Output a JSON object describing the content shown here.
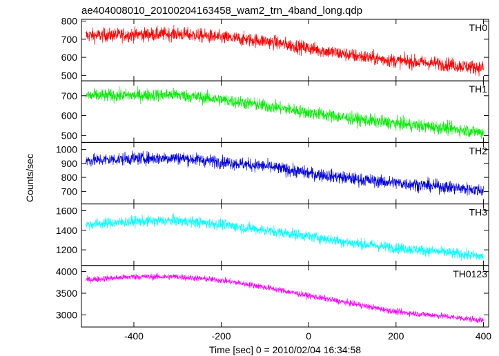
{
  "chart_data": {
    "type": "line",
    "title": "ae404008010_20100204163458_wam2_trn_4band_long.qdp",
    "xlabel": "Time [sec] 0 = 2010/02/04 16:34:58",
    "ylabel": "Counts/sec",
    "xlim": [
      -520,
      412
    ],
    "xticks": [
      -400,
      -200,
      0,
      200,
      400
    ],
    "panels": [
      {
        "name": "TH0",
        "color": "#ff0000",
        "ylim": [
          470,
          810
        ],
        "yticks": [
          500,
          600,
          700,
          800
        ],
        "x": [
          -510,
          -400,
          -300,
          -200,
          -100,
          0,
          100,
          200,
          300,
          400
        ],
        "values": [
          720,
          725,
          730,
          710,
          690,
          650,
          610,
          580,
          565,
          540
        ],
        "noise": 38
      },
      {
        "name": "TH1",
        "color": "#00ee00",
        "ylim": [
          465,
          775
        ],
        "yticks": [
          500,
          600,
          700
        ],
        "x": [
          -510,
          -400,
          -300,
          -200,
          -100,
          0,
          100,
          200,
          300,
          400
        ],
        "values": [
          700,
          702,
          705,
          680,
          650,
          615,
          585,
          560,
          540,
          515
        ],
        "noise": 32
      },
      {
        "name": "TH2",
        "color": "#0000dd",
        "ylim": [
          610,
          1050
        ],
        "yticks": [
          700,
          800,
          900,
          1000
        ],
        "x": [
          -510,
          -400,
          -300,
          -200,
          -100,
          0,
          100,
          200,
          300,
          400
        ],
        "values": [
          920,
          935,
          940,
          910,
          880,
          830,
          790,
          760,
          735,
          705
        ],
        "noise": 45
      },
      {
        "name": "TH3",
        "color": "#00ffff",
        "ylim": [
          1040,
          1670
        ],
        "yticks": [
          1200,
          1400,
          1600
        ],
        "x": [
          -510,
          -400,
          -300,
          -200,
          -100,
          0,
          100,
          200,
          300,
          400
        ],
        "values": [
          1460,
          1490,
          1500,
          1460,
          1400,
          1340,
          1270,
          1220,
          1180,
          1130
        ],
        "noise": 55
      },
      {
        "name": "TH0123",
        "color": "#ff00ff",
        "ylim": [
          2720,
          4140
        ],
        "yticks": [
          3000,
          3500,
          4000
        ],
        "x": [
          -510,
          -400,
          -300,
          -200,
          -100,
          0,
          100,
          200,
          300,
          400
        ],
        "values": [
          3810,
          3880,
          3880,
          3800,
          3640,
          3440,
          3260,
          3070,
          2980,
          2870
        ],
        "noise": 70
      }
    ]
  }
}
